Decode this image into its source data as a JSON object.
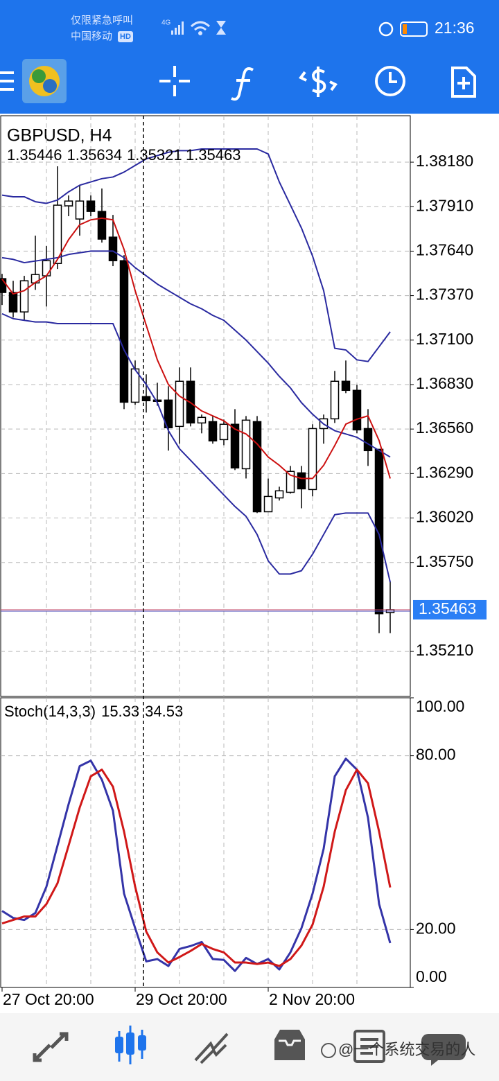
{
  "status_bar": {
    "notice": "仅限紧急呼叫",
    "carrier": "中国移动",
    "hd": "HD",
    "network": "4G",
    "time": "21:36"
  },
  "chart_data": [
    {
      "type": "candlestick",
      "title": "GBPUSD, H4",
      "categories": [
        "27 Oct 20:00",
        null,
        null,
        null,
        null,
        null,
        null,
        null,
        null,
        null,
        null,
        null,
        "29 Oct 20:00",
        null,
        null,
        null,
        null,
        null,
        null,
        null,
        null,
        null,
        null,
        null,
        "2 Nov 20:00",
        null,
        null,
        null,
        null,
        null,
        null,
        null,
        null,
        null,
        null,
        null
      ],
      "open": [
        1.37473,
        1.37389,
        1.37271,
        1.37447,
        1.3749,
        1.37565,
        1.37915,
        1.37835,
        1.37944,
        1.37881,
        1.37725,
        1.37582,
        1.36723,
        1.36757,
        1.36736,
        1.36736,
        1.36576,
        1.3685,
        1.36597,
        1.36605,
        1.36496,
        1.36589,
        1.36319,
        1.36605,
        1.36058,
        1.36142,
        1.36176,
        1.36294,
        1.36193,
        1.36563,
        1.36622,
        1.3685,
        1.36795,
        1.36563,
        1.36437,
        1.35446
      ],
      "high": [
        1.37502,
        1.3746,
        1.3749,
        1.37734,
        1.37671,
        1.38155,
        1.37978,
        1.38037,
        1.37978,
        1.3802,
        1.3786,
        1.37616,
        1.36976,
        1.36892,
        1.36841,
        1.3682,
        1.36934,
        1.36934,
        1.36648,
        1.36639,
        1.36618,
        1.36681,
        1.36639,
        1.36639,
        1.3626,
        1.3621,
        1.36336,
        1.36336,
        1.36589,
        1.36648,
        1.36913,
        1.36976,
        1.36829,
        1.36681,
        1.36437,
        1.35634
      ],
      "low": [
        1.37313,
        1.37237,
        1.3722,
        1.37405,
        1.37304,
        1.37532,
        1.37852,
        1.37734,
        1.37852,
        1.37692,
        1.37549,
        1.36681,
        1.36707,
        1.3666,
        1.36702,
        1.36429,
        1.36471,
        1.36576,
        1.36534,
        1.36471,
        1.36462,
        1.36311,
        1.3626,
        1.3605,
        1.36058,
        1.36126,
        1.36168,
        1.36079,
        1.36151,
        1.36471,
        1.36597,
        1.36778,
        1.36534,
        1.36336,
        1.35321,
        1.35321
      ],
      "close": [
        1.37389,
        1.37271,
        1.3746,
        1.37498,
        1.37582,
        1.37919,
        1.37944,
        1.37944,
        1.37881,
        1.37713,
        1.37582,
        1.36723,
        1.36925,
        1.36732,
        1.36728,
        1.36568,
        1.3685,
        1.36597,
        1.36631,
        1.36488,
        1.36589,
        1.36324,
        1.36614,
        1.36058,
        1.36151,
        1.36185,
        1.36303,
        1.36197,
        1.36563,
        1.36622,
        1.3685,
        1.36795,
        1.36555,
        1.36429,
        1.35439,
        1.35463
      ],
      "series": [
        {
          "color": "#2a2aa0",
          "values": [
            1.3798,
            1.3797,
            1.3797,
            1.3794,
            1.3793,
            1.3795,
            1.38,
            1.3804,
            1.3806,
            1.3808,
            1.3809,
            1.3812,
            1.3816,
            1.382,
            1.3822,
            1.3824,
            1.3825,
            1.3825,
            1.3826,
            1.3826,
            1.3826,
            1.3826,
            1.3826,
            1.3826,
            1.3823,
            1.3806,
            1.3792,
            1.3778,
            1.3761,
            1.374,
            1.3705,
            1.3704,
            1.3698,
            1.3697,
            1.3706,
            1.3715
          ]
        },
        {
          "color": "#2a2aa0",
          "values": [
            1.376,
            1.3759,
            1.3757,
            1.3758,
            1.3759,
            1.376,
            1.3762,
            1.3763,
            1.3764,
            1.3764,
            1.3764,
            1.376,
            1.3754,
            1.3749,
            1.3744,
            1.374,
            1.3736,
            1.3732,
            1.3729,
            1.3725,
            1.3722,
            1.3716,
            1.371,
            1.3703,
            1.3696,
            1.3688,
            1.3681,
            1.3672,
            1.3665,
            1.3659,
            1.3655,
            1.3653,
            1.3651,
            1.3647,
            1.3643,
            1.3639
          ]
        },
        {
          "color": "#2a2aa0",
          "values": [
            1.3726,
            1.3723,
            1.3722,
            1.3721,
            1.3721,
            1.372,
            1.372,
            1.372,
            1.372,
            1.372,
            1.372,
            1.3704,
            1.3692,
            1.3683,
            1.3672,
            1.3655,
            1.3644,
            1.3637,
            1.363,
            1.3623,
            1.3616,
            1.3609,
            1.3603,
            1.3592,
            1.3576,
            1.3568,
            1.3568,
            1.357,
            1.358,
            1.3592,
            1.3604,
            1.3605,
            1.3605,
            1.3605,
            1.3592,
            1.3563
          ]
        },
        {
          "color": "#cc1010",
          "values": [
            1.3747,
            1.3738,
            1.374,
            1.3745,
            1.3749,
            1.3759,
            1.3771,
            1.378,
            1.3783,
            1.3784,
            1.3783,
            1.3765,
            1.374,
            1.3719,
            1.3698,
            1.3683,
            1.3676,
            1.3672,
            1.3667,
            1.3664,
            1.3661,
            1.3656,
            1.3653,
            1.3647,
            1.3639,
            1.3634,
            1.3628,
            1.3626,
            1.3626,
            1.3634,
            1.3646,
            1.3659,
            1.3662,
            1.3664,
            1.3649,
            1.3626
          ]
        }
      ],
      "ylim": [
        1.34937,
        1.38462
      ],
      "yticks": [
        {
          "value": 1.3818,
          "label": "1.38180"
        },
        {
          "value": 1.3791,
          "label": "1.37910"
        },
        {
          "value": 1.3764,
          "label": "1.37640"
        },
        {
          "value": 1.3737,
          "label": "1.37370"
        },
        {
          "value": 1.371,
          "label": "1.37100"
        },
        {
          "value": 1.3683,
          "label": "1.36830"
        },
        {
          "value": 1.3656,
          "label": "1.36560"
        },
        {
          "value": 1.3629,
          "label": "1.36290"
        },
        {
          "value": 1.3602,
          "label": "1.36020"
        },
        {
          "value": 1.3575,
          "label": "1.35750"
        },
        {
          "value": 1.3521,
          "label": "1.35210"
        }
      ],
      "grid": true
    },
    {
      "type": "line",
      "title": "Stoch(14,3,3)",
      "series": [
        {
          "color": "#3434a8",
          "values": [
            26.4,
            24.0,
            23.3,
            25.7,
            34.8,
            49.0,
            63.3,
            76.4,
            78.3,
            71.7,
            61.0,
            32.4,
            20.5,
            9.0,
            9.8,
            7.4,
            13.3,
            14.3,
            15.7,
            9.8,
            9.5,
            5.7,
            10.2,
            8.1,
            9.8,
            6.2,
            12.1,
            20.5,
            32.4,
            47.9,
            72.9,
            79.0,
            75.2,
            58.6,
            28.8,
            15.33
          ]
        },
        {
          "color": "#d01818",
          "values": [
            22.1,
            23.3,
            24.5,
            24.5,
            28.8,
            36.0,
            49.0,
            62.1,
            72.9,
            75.2,
            69.3,
            53.8,
            34.8,
            19.3,
            12.1,
            8.6,
            10.5,
            12.6,
            15.0,
            13.3,
            12.1,
            8.6,
            8.6,
            8.1,
            8.6,
            7.4,
            9.8,
            14.5,
            21.7,
            34.8,
            53.8,
            68.1,
            75.2,
            70.5,
            53.8,
            34.53
          ]
        }
      ],
      "ylim": [
        0,
        100
      ],
      "yticks": [
        {
          "value": 100,
          "label": "100.00"
        },
        {
          "value": 80,
          "label": "80.00"
        },
        {
          "value": 20,
          "label": "20.00"
        },
        {
          "value": 0,
          "label": "0.00"
        }
      ],
      "grid": true
    }
  ],
  "watermark": "@一个系统交易的人"
}
